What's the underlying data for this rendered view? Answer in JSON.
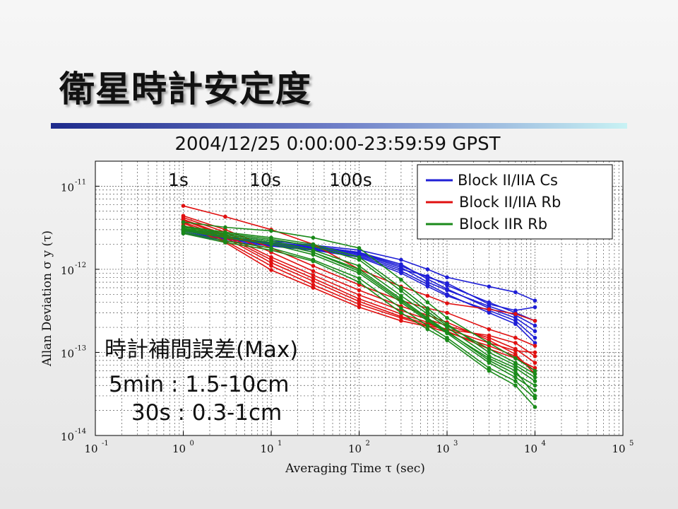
{
  "slide": {
    "title": "衛星時計安定度"
  },
  "chart_data": {
    "type": "line",
    "title": "2004/12/25 0:00:00-23:59:59 GPST",
    "xlabel": "Averaging Time τ (sec)",
    "ylabel": "Allan Deviation σ y (τ)",
    "xscale": "log",
    "yscale": "log",
    "xlim": [
      0.1,
      100000
    ],
    "ylim": [
      1e-14,
      2e-11
    ],
    "grid": true,
    "x_ticks": [
      {
        "base": "10",
        "exp": "-1"
      },
      {
        "base": "10",
        "exp": "0"
      },
      {
        "base": "10",
        "exp": "1"
      },
      {
        "base": "10",
        "exp": "2"
      },
      {
        "base": "10",
        "exp": "3"
      },
      {
        "base": "10",
        "exp": "4"
      },
      {
        "base": "10",
        "exp": "5"
      }
    ],
    "y_ticks": [
      {
        "base": "10",
        "exp": "-11"
      },
      {
        "base": "10",
        "exp": "-12"
      },
      {
        "base": "10",
        "exp": "-13"
      },
      {
        "base": "10",
        "exp": "-14"
      }
    ],
    "tau_labels": [
      "1s",
      "10s",
      "100s"
    ],
    "legend": {
      "position": "top-right",
      "entries": [
        {
          "label": "Block II/IIA Cs",
          "color": "#1f1fd6"
        },
        {
          "label": "Block II/IIA Rb",
          "color": "#e01010"
        },
        {
          "label": "Block IIR Rb",
          "color": "#1a8a1a"
        }
      ]
    },
    "x": [
      1,
      3,
      10,
      30,
      100,
      300,
      600,
      1000,
      3000,
      6000,
      10000
    ],
    "groups": [
      {
        "name": "Block II/IIA Cs",
        "color": "#1f1fd6",
        "lines": [
          [
            3e-12,
            2.4e-12,
            2.05e-12,
            1.85e-12,
            1.55e-12,
            1.05e-12,
            7e-13,
            5.6e-13,
            3.6e-13,
            2.8e-13,
            2.1e-13
          ],
          [
            2.7e-12,
            2.2e-12,
            1.9e-12,
            1.7e-12,
            1.4e-12,
            9e-13,
            6.2e-13,
            4.8e-13,
            3.2e-13,
            2.4e-13,
            1.5e-13
          ],
          [
            3.3e-12,
            2.6e-12,
            2.2e-12,
            1.95e-12,
            1.7e-12,
            1.3e-12,
            1e-12,
            8e-13,
            6.2e-13,
            5.3e-13,
            4.2e-13
          ],
          [
            2.9e-12,
            2.35e-12,
            2e-12,
            1.8e-12,
            1.5e-12,
            1e-12,
            8.3e-13,
            6.4e-13,
            4e-13,
            3e-13,
            2.4e-13
          ],
          [
            3.1e-12,
            2.5e-12,
            2.1e-12,
            1.9e-12,
            1.6e-12,
            1.15e-12,
            7.6e-13,
            5.8e-13,
            3.4e-13,
            2.6e-13,
            1.8e-13
          ],
          [
            2.8e-12,
            2.3e-12,
            1.95e-12,
            1.75e-12,
            1.45e-12,
            9.5e-13,
            6.6e-13,
            5e-13,
            3e-13,
            2.2e-13,
            1.3e-13
          ],
          [
            3e-12,
            2.45e-12,
            2.05e-12,
            1.9e-12,
            1.58e-12,
            1.1e-12,
            8e-13,
            6.8e-13,
            3.8e-13,
            3.2e-13,
            3.5e-13
          ]
        ]
      },
      {
        "name": "Block II/IIA Rb",
        "color": "#e01010",
        "lines": [
          [
            5.8e-12,
            4.3e-12,
            3e-12,
            2e-12,
            1e-12,
            6.2e-13,
            4.8e-13,
            3.9e-13,
            3.3e-13,
            2.9e-13,
            2.4e-13
          ],
          [
            4.4e-12,
            3e-12,
            1.8e-12,
            1.1e-12,
            6.5e-13,
            4.2e-13,
            3.4e-13,
            3e-13,
            1.9e-13,
            1.5e-13,
            1.2e-13
          ],
          [
            4e-12,
            2.6e-12,
            1.4e-12,
            8.5e-13,
            4.9e-13,
            3.2e-13,
            2.5e-13,
            2.1e-13,
            1.5e-13,
            1.1e-13,
            7.5e-14
          ],
          [
            3.6e-12,
            2.2e-12,
            1.1e-12,
            6.5e-13,
            3.8e-13,
            2.6e-13,
            2.1e-13,
            1.9e-13,
            1.6e-13,
            1.3e-13,
            9e-14
          ],
          [
            3.9e-12,
            2.5e-12,
            1.3e-12,
            7.8e-13,
            4.4e-13,
            2.9e-13,
            2.3e-13,
            1.8e-13,
            1.1e-13,
            8.5e-14,
            6.5e-14
          ],
          [
            4.2e-12,
            2.8e-12,
            1.6e-12,
            9.5e-13,
            5.6e-13,
            3.6e-13,
            2.8e-13,
            2.3e-13,
            1.4e-13,
            9.5e-14,
            5.5e-14
          ],
          [
            3.7e-12,
            2.4e-12,
            1.2e-12,
            7.2e-13,
            4.1e-13,
            2.7e-13,
            2.2e-13,
            1.9e-13,
            1.3e-13,
            1.05e-13,
            1e-13
          ],
          [
            3.4e-12,
            2.1e-12,
            9.8e-13,
            6e-13,
            3.5e-13,
            2.4e-13,
            2.05e-13,
            1.75e-13,
            1.2e-13,
            9e-14,
            6e-14
          ]
        ]
      },
      {
        "name": "Block IIR Rb",
        "color": "#1a8a1a",
        "lines": [
          [
            3.7e-12,
            3.2e-12,
            2.9e-12,
            2.4e-12,
            1.8e-12,
            7.5e-13,
            4e-13,
            2.6e-13,
            1.3e-13,
            8.5e-14,
            6e-14
          ],
          [
            3.3e-12,
            2.8e-12,
            2.4e-12,
            2e-12,
            1.4e-12,
            6e-13,
            3.4e-13,
            2.2e-13,
            1e-13,
            7e-14,
            5e-14
          ],
          [
            3e-12,
            2.5e-12,
            2.1e-12,
            1.6e-12,
            1e-12,
            4.4e-13,
            2.6e-13,
            1.8e-13,
            8e-14,
            5.5e-14,
            4e-14
          ],
          [
            2.8e-12,
            2.2e-12,
            1.8e-12,
            1.3e-12,
            7.8e-13,
            3.4e-13,
            2.1e-13,
            1.5e-13,
            6.5e-14,
            4.5e-14,
            2.8e-14
          ],
          [
            3.1e-12,
            2.6e-12,
            2.2e-12,
            1.7e-12,
            1.1e-12,
            4.8e-13,
            2.9e-13,
            2e-13,
            9e-14,
            6.5e-14,
            4.5e-14
          ],
          [
            2.9e-12,
            2.4e-12,
            2e-12,
            1.5e-12,
            9e-13,
            4e-13,
            2.4e-13,
            1.7e-13,
            7.5e-14,
            5e-14,
            3.5e-14
          ],
          [
            2.7e-12,
            2.1e-12,
            1.7e-12,
            1.25e-12,
            7e-13,
            3e-13,
            1.9e-13,
            1.4e-13,
            6e-14,
            4e-14,
            2.2e-14
          ],
          [
            3.2e-12,
            2.7e-12,
            2.3e-12,
            1.9e-12,
            1.3e-12,
            5.5e-13,
            3.1e-13,
            2.1e-13,
            1.1e-13,
            7.5e-14,
            5.5e-14
          ],
          [
            3e-12,
            2.5e-12,
            2.1e-12,
            1.6e-12,
            9.5e-13,
            4.2e-13,
            2.5e-13,
            1.75e-13,
            8.5e-14,
            6e-14,
            3e-14
          ]
        ]
      }
    ],
    "annotations": [
      "時計補間誤差(Max)",
      "5min : 1.5-10cm",
      "30s : 0.3-1cm"
    ]
  }
}
